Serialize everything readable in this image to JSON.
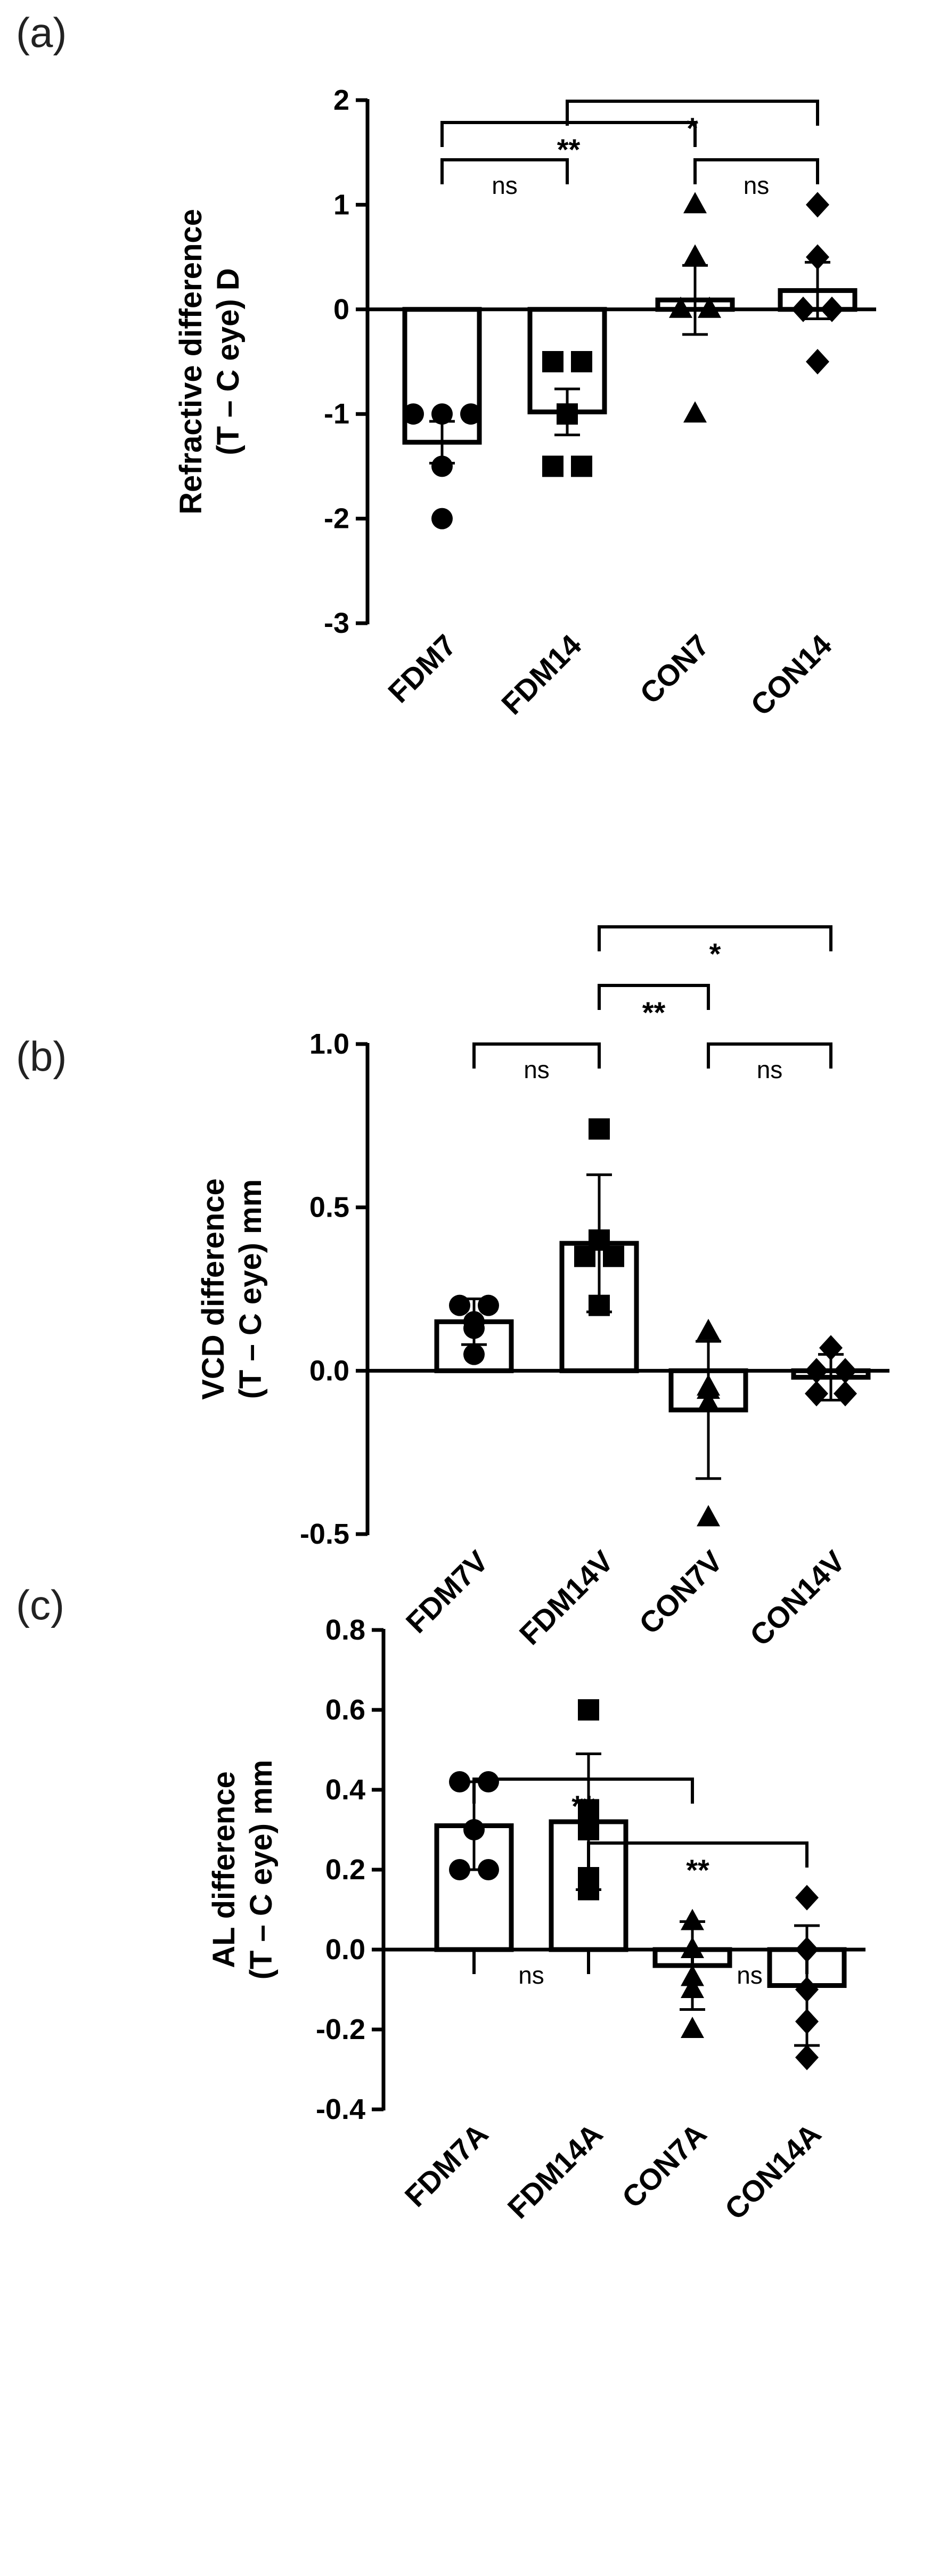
{
  "chart_data": [
    {
      "panel_label": "(a)",
      "type": "bar",
      "ylabel_lines": [
        "Refractive difference",
        "(T – C eye) D"
      ],
      "ylim": [
        -3,
        2
      ],
      "yticks": [
        2,
        1,
        0,
        -1,
        -2,
        -3
      ],
      "categories": [
        "FDM7",
        "FDM14",
        "CON7",
        "CON14"
      ],
      "means": [
        -1.27,
        -0.98,
        0.09,
        0.18
      ],
      "errors": [
        0.2,
        0.22,
        0.33,
        0.27
      ],
      "markers": [
        "circle",
        "square",
        "triangle",
        "diamond"
      ],
      "points": [
        [
          -1.0,
          -1.0,
          -1.0,
          -1.5,
          -2.0
        ],
        [
          -0.5,
          -0.5,
          -1.0,
          -1.5,
          -1.5
        ],
        [
          1.0,
          0.5,
          0.0,
          0.0,
          -1.0
        ],
        [
          1.0,
          0.5,
          0.0,
          0.0,
          -0.5
        ]
      ],
      "comparisons": [
        {
          "from": 1,
          "to": 3,
          "label": "*"
        },
        {
          "from": 0,
          "to": 2,
          "label": "**"
        },
        {
          "from": 0,
          "to": 1,
          "label": "ns"
        },
        {
          "from": 2,
          "to": 3,
          "label": "ns"
        }
      ]
    },
    {
      "panel_label": "(b)",
      "type": "bar",
      "ylabel_lines": [
        "VCD difference",
        "(T – C eye) mm"
      ],
      "ylim": [
        -0.5,
        1.0
      ],
      "yticks": [
        1.0,
        0.5,
        0.0,
        -0.5
      ],
      "categories": [
        "FDM7V",
        "FDM14V",
        "CON7V",
        "CON14V"
      ],
      "means": [
        0.15,
        0.39,
        -0.12,
        -0.02
      ],
      "errors": [
        0.07,
        0.21,
        0.21,
        0.07
      ],
      "markers": [
        "circle",
        "square",
        "triangle",
        "diamond"
      ],
      "points": [
        [
          0.2,
          0.2,
          0.15,
          0.13,
          0.05
        ],
        [
          0.74,
          0.4,
          0.35,
          0.35,
          0.2
        ],
        [
          0.12,
          -0.05,
          -0.06,
          -0.1,
          -0.45
        ],
        [
          0.07,
          0.0,
          0.0,
          -0.07,
          -0.07
        ]
      ],
      "comparisons": [
        {
          "from": 1,
          "to": 3,
          "label": "*"
        },
        {
          "from": 1,
          "to": 2,
          "label": "**"
        },
        {
          "from": 0,
          "to": 1,
          "label": "ns"
        },
        {
          "from": 2,
          "to": 3,
          "label": "ns"
        }
      ]
    },
    {
      "panel_label": "(c)",
      "type": "bar",
      "ylabel_lines": [
        "AL difference",
        "(T – C eye) mm"
      ],
      "ylim": [
        -0.4,
        0.8
      ],
      "yticks": [
        0.8,
        0.6,
        0.4,
        0.2,
        0.0,
        -0.2,
        -0.4
      ],
      "categories": [
        "FDM7A",
        "FDM14A",
        "CON7A",
        "CON14A"
      ],
      "means": [
        0.31,
        0.32,
        -0.04,
        -0.09
      ],
      "errors": [
        0.11,
        0.17,
        0.11,
        0.15
      ],
      "markers": [
        "circle",
        "square",
        "triangle",
        "diamond"
      ],
      "points": [
        [
          0.42,
          0.42,
          0.3,
          0.2,
          0.2
        ],
        [
          0.6,
          0.35,
          0.3,
          0.18,
          0.15
        ],
        [
          0.07,
          0.0,
          -0.07,
          -0.1,
          -0.2
        ],
        [
          0.13,
          0.0,
          -0.1,
          -0.18,
          -0.27
        ]
      ],
      "comparisons": [
        {
          "from": 0,
          "to": 2,
          "label": "**"
        },
        {
          "from": 1,
          "to": 3,
          "label": "**"
        },
        {
          "from": 0,
          "to": 1,
          "label": "ns"
        },
        {
          "from": 2,
          "to": 3,
          "label": "ns"
        }
      ]
    }
  ]
}
